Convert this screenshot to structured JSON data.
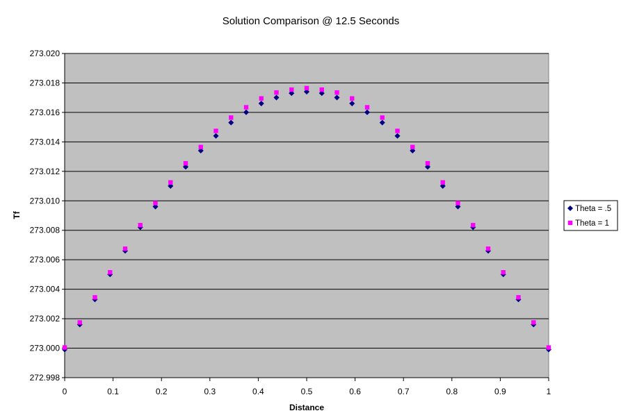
{
  "chart_data": {
    "type": "scatter",
    "title": "Solution Comparison @ 12.5 Seconds",
    "xlabel": "Distance",
    "ylabel": "Tf",
    "xlim": [
      0,
      1
    ],
    "ylim": [
      272.998,
      273.02
    ],
    "x_ticks": [
      "0",
      "0.1",
      "0.2",
      "0.3",
      "0.4",
      "0.5",
      "0.6",
      "0.7",
      "0.8",
      "0.9",
      "1"
    ],
    "y_ticks": [
      "272.998",
      "273.000",
      "273.002",
      "273.004",
      "273.006",
      "273.008",
      "273.010",
      "273.012",
      "273.014",
      "273.016",
      "273.018",
      "273.020"
    ],
    "grid": true,
    "legend_position": "right",
    "plot_background": "#c0c0c0",
    "x": [
      0,
      0.03125,
      0.0625,
      0.09375,
      0.125,
      0.15625,
      0.1875,
      0.21875,
      0.25,
      0.28125,
      0.3125,
      0.34375,
      0.375,
      0.40625,
      0.4375,
      0.46875,
      0.5,
      0.53125,
      0.5625,
      0.59375,
      0.625,
      0.65625,
      0.6875,
      0.71875,
      0.75,
      0.78125,
      0.8125,
      0.84375,
      0.875,
      0.90625,
      0.9375,
      0.96875,
      1
    ],
    "series": [
      {
        "name": "Theta = .5",
        "marker": "diamond",
        "color": "#000080",
        "values": [
          273.0,
          273.0017,
          273.0034,
          273.0051,
          273.0067,
          273.0083,
          273.0097,
          273.0111,
          273.0124,
          273.0135,
          273.0145,
          273.0154,
          273.0161,
          273.0167,
          273.0171,
          273.0174,
          273.0175,
          273.0174,
          273.0171,
          273.0167,
          273.0161,
          273.0154,
          273.0145,
          273.0135,
          273.0124,
          273.0111,
          273.0097,
          273.0083,
          273.0067,
          273.0051,
          273.0034,
          273.0017,
          273.0
        ]
      },
      {
        "name": "Theta = 1",
        "marker": "square",
        "color": "#ff00ff",
        "values": [
          273.0,
          273.0017,
          273.0034,
          273.0051,
          273.0067,
          273.0083,
          273.0098,
          273.0112,
          273.0125,
          273.0136,
          273.0147,
          273.0156,
          273.0163,
          273.0169,
          273.0173,
          273.0175,
          273.0176,
          273.0175,
          273.0173,
          273.0169,
          273.0163,
          273.0156,
          273.0147,
          273.0136,
          273.0125,
          273.0112,
          273.0098,
          273.0083,
          273.0067,
          273.0051,
          273.0034,
          273.0017,
          273.0
        ]
      }
    ]
  }
}
